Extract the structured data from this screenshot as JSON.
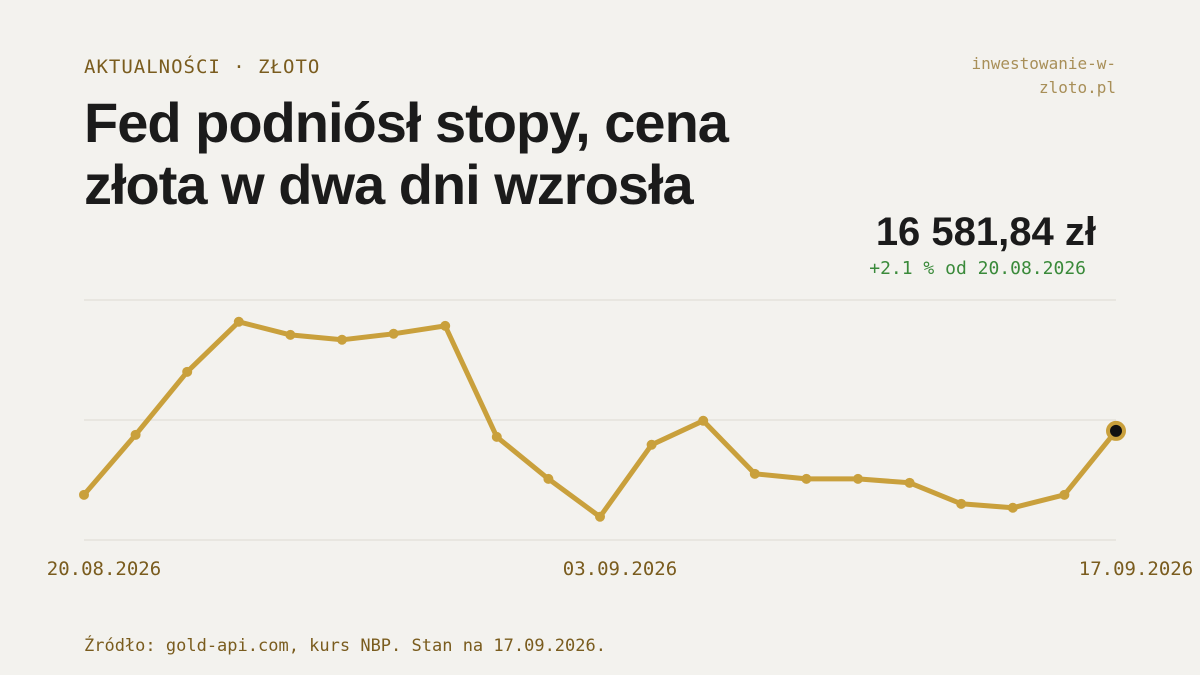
{
  "chart_data": {
    "type": "line",
    "kicker": "AKTUALNOŚCI · ZŁOTO",
    "site": "inwestowanie-w-zloto.pl",
    "title": "Fed podniósł stopy, cena złota w dwa dni wzrosła",
    "price": "16 581,84 zł",
    "change": "+2.1 % od 20.08.2026",
    "source": "Źródło: gold-api.com, kurs NBP. Stan na 17.09.2026.",
    "categories": [
      "20.08.2026",
      null,
      null,
      null,
      null,
      null,
      null,
      null,
      null,
      null,
      "03.09.2026",
      null,
      null,
      null,
      null,
      null,
      null,
      null,
      null,
      null,
      "17.09.2026"
    ],
    "values": [
      16241,
      16561,
      16897,
      17164,
      17094,
      17068,
      17100,
      17142,
      16550,
      16326,
      16124,
      16508,
      16636,
      16353,
      16326,
      16326,
      16305,
      16193,
      16172,
      16241,
      16581.84
    ],
    "color": "#c9a03c",
    "ylim": [
      16000,
      17280
    ]
  }
}
